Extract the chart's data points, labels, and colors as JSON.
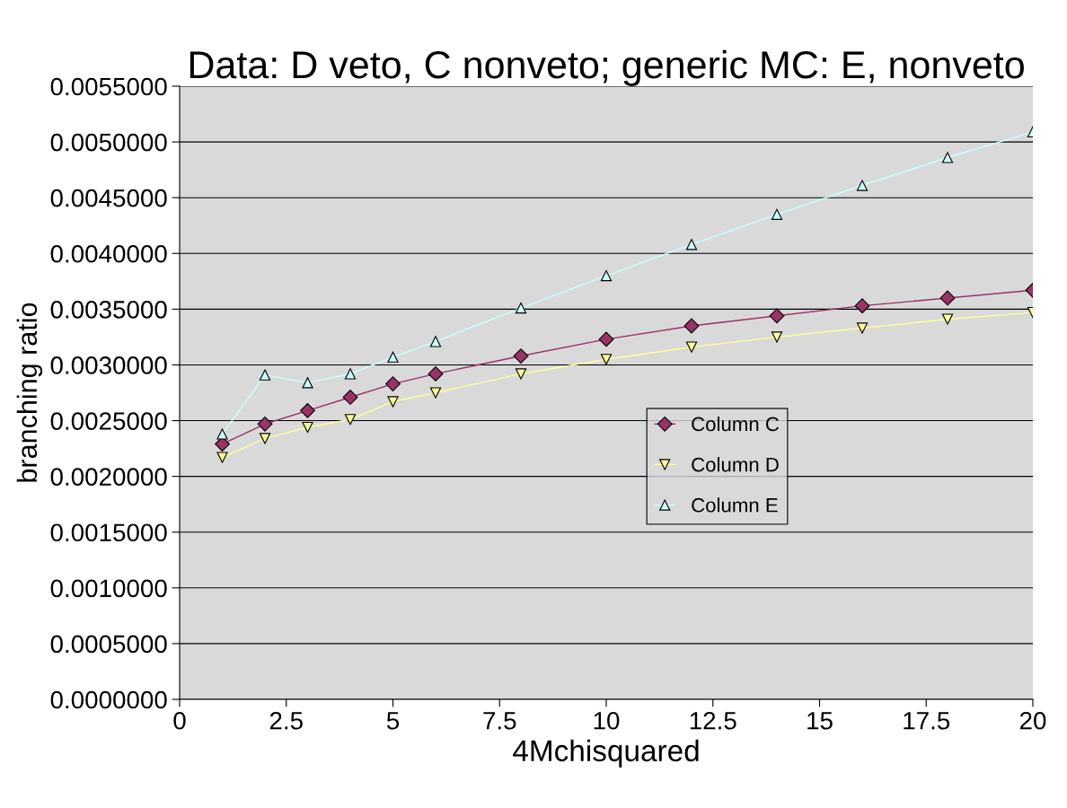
{
  "chart_data": {
    "type": "line",
    "title": "Data: D veto, C nonveto; generic MC: E, nonveto",
    "xlabel": "4Mchisquared",
    "ylabel": "branching ratio",
    "x": [
      1,
      2,
      3,
      4,
      5,
      6,
      8,
      10,
      12,
      14,
      16,
      18,
      20
    ],
    "series": [
      {
        "name": "Column C",
        "color": "#993366",
        "marker": "diamond",
        "values": [
          0.00229,
          0.00247,
          0.00259,
          0.00271,
          0.00283,
          0.00292,
          0.00308,
          0.00323,
          0.00335,
          0.00344,
          0.00353,
          0.0036,
          0.00367
        ]
      },
      {
        "name": "Column D",
        "color": "#ffff99",
        "marker": "triangle_down",
        "values": [
          0.00217,
          0.00234,
          0.00244,
          0.00251,
          0.00267,
          0.00275,
          0.00292,
          0.00305,
          0.00316,
          0.00325,
          0.00333,
          0.00341,
          0.00347
        ]
      },
      {
        "name": "Column E",
        "color": "#ccffff",
        "marker": "triangle",
        "values": [
          0.00238,
          0.00291,
          0.00284,
          0.00292,
          0.00307,
          0.00321,
          0.00351,
          0.0038,
          0.00408,
          0.00435,
          0.00461,
          0.00486,
          0.00509
        ]
      }
    ],
    "xlim": [
      0,
      20
    ],
    "xticks": [
      0,
      2.5,
      5,
      7.5,
      10,
      12.5,
      15,
      17.5,
      20
    ],
    "ylim": [
      0,
      0.0055
    ],
    "yticks": [
      {
        "value": 0,
        "label": "0.0000000"
      },
      {
        "value": 0.0005,
        "label": "0.0005000"
      },
      {
        "value": 0.001,
        "label": "0.0010000"
      },
      {
        "value": 0.0015,
        "label": "0.0015000"
      },
      {
        "value": 0.002,
        "label": "0.0020000"
      },
      {
        "value": 0.0025,
        "label": "0.0025000"
      },
      {
        "value": 0.003,
        "label": "0.0030000"
      },
      {
        "value": 0.0035,
        "label": "0.0035000"
      },
      {
        "value": 0.004,
        "label": "0.0040000"
      },
      {
        "value": 0.0045,
        "label": "0.0045000"
      },
      {
        "value": 0.005,
        "label": "0.0050000"
      },
      {
        "value": 0.0055,
        "label": "0.0055000"
      }
    ],
    "grid": "y",
    "legend": "center right"
  }
}
